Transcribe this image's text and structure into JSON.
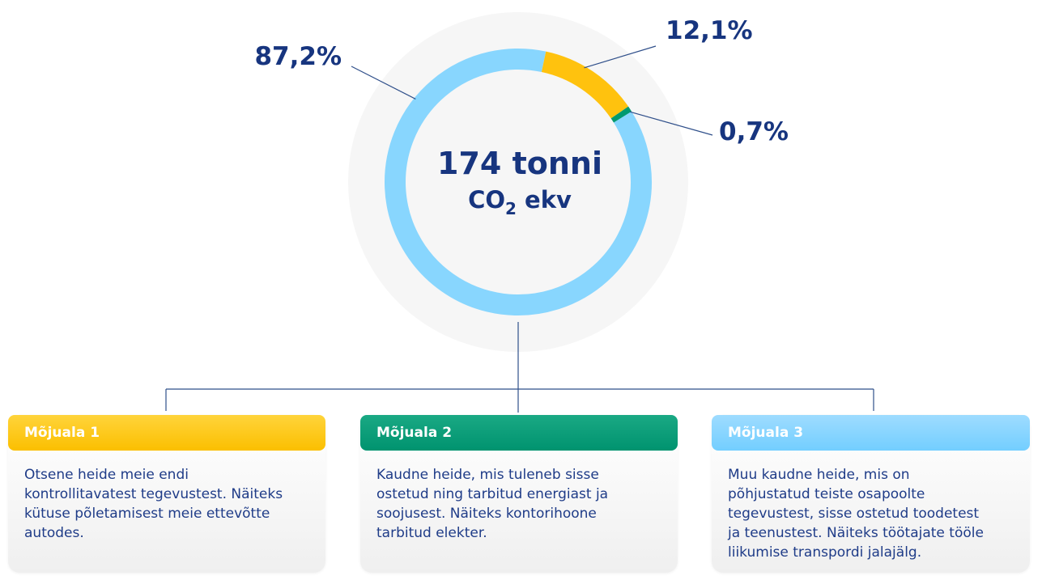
{
  "chart_data": {
    "type": "pie",
    "center_title": "174 tonni",
    "center_unit_prefix": "CO",
    "center_unit_sub": "2",
    "center_unit_suffix": " ekv",
    "slices": [
      {
        "label": "87,2%",
        "value": 87.2,
        "color": "#88d6fe"
      },
      {
        "label": "12,1%",
        "value": 12.1,
        "color": "#ffc20e"
      },
      {
        "label": "0,7%",
        "value": 0.7,
        "color": "#00996f"
      }
    ]
  },
  "cards": [
    {
      "title": "Mõjuala 1",
      "text": "Otsene heide meie endi\nkontrollitavatest tegevustest. Näiteks\nkütuse põletamisest meie ettevõtte\nautodes."
    },
    {
      "title": "Mõjuala 2",
      "text": "Kaudne heide, mis tuleneb sisse\nostetud ning tarbitud energiast ja\nsoojusest. Näiteks kontorihoone\ntarbitud elekter."
    },
    {
      "title": "Mõjuala 3",
      "text": "Muu kaudne heide, mis on\npõhjustatud  teiste osapoolte\ntegevustest, sisse ostetud toodetest\nja teenustest. Näiteks töötajate tööle\nliikumise transpordi jalajälg."
    }
  ],
  "colors": {
    "text_dark": "#17357f",
    "connector": "#2f4f8a",
    "halo": "#f6f6f6"
  }
}
